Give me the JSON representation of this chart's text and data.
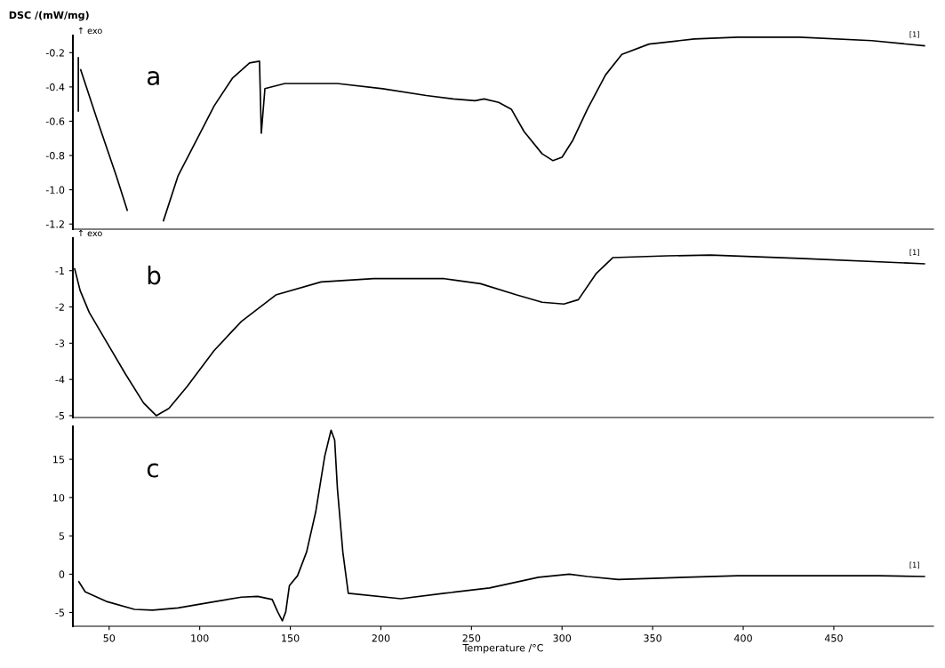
{
  "chart_data": [
    {
      "type": "line",
      "ylabel": "DSC /(mW/mg)",
      "annotations": [
        "a",
        "↑ exo",
        "[1]"
      ],
      "xlim": [
        30,
        505
      ],
      "ylim": [
        -1.23,
        -0.1
      ],
      "yticks": [
        -0.2,
        -0.4,
        -0.6,
        -0.8,
        {
          "value": -1,
          "label": "-1.0"
        },
        -1.2
      ],
      "tick_labels": "y",
      "grid": false,
      "legend": false,
      "series": [
        {
          "color": "#000000",
          "x": [
            33,
            33
          ],
          "values": [
            -0.23,
            -0.54
          ]
        },
        {
          "color": "#000000",
          "x": [
            34.3,
            44,
            54,
            60,
            63,
            77,
            80,
            88,
            108,
            118,
            127.5,
            133,
            134,
            136,
            147,
            176,
            201,
            225,
            240,
            252,
            257,
            265,
            272,
            279,
            289,
            295,
            300,
            306,
            314,
            324,
            333,
            348,
            373,
            397,
            431,
            471,
            500
          ],
          "values": [
            -0.3,
            -0.61,
            -0.92,
            -1.12,
            null,
            null,
            -1.18,
            -0.92,
            -0.51,
            -0.35,
            -0.26,
            -0.25,
            -0.67,
            -0.41,
            -0.38,
            -0.38,
            -0.41,
            -0.45,
            -0.47,
            -0.48,
            -0.47,
            -0.49,
            -0.53,
            -0.66,
            -0.79,
            -0.83,
            -0.81,
            -0.71,
            -0.53,
            -0.33,
            -0.21,
            -0.15,
            -0.12,
            -0.11,
            -0.11,
            -0.13,
            -0.16
          ]
        }
      ]
    },
    {
      "type": "line",
      "annotations": [
        "b",
        "↑ exo",
        "[1]"
      ],
      "xlim": [
        30,
        505
      ],
      "ylim": [
        -5.05,
        -0.1
      ],
      "yticks": [
        -1,
        -2,
        -3,
        -4,
        -5
      ],
      "tick_labels": "y",
      "grid": false,
      "legend": false,
      "series": [
        {
          "color": "#000000",
          "x": [
            31,
            34,
            39,
            49,
            59,
            69,
            76,
            83,
            93,
            108,
            123,
            142,
            167,
            196,
            235,
            255,
            275,
            289,
            301,
            309,
            319,
            328,
            358,
            382,
            431,
            500
          ],
          "values": [
            -0.95,
            -1.55,
            -2.15,
            -3.0,
            -3.85,
            -4.65,
            -5.0,
            -4.8,
            -4.2,
            -3.2,
            -2.4,
            -1.67,
            -1.31,
            -1.22,
            -1.22,
            -1.36,
            -1.67,
            -1.87,
            -1.92,
            -1.8,
            -1.07,
            -0.64,
            -0.59,
            -0.57,
            -0.66,
            -0.81
          ]
        }
      ]
    },
    {
      "type": "line",
      "xlabel": "Temperature /°C",
      "annotations": [
        "c",
        "[1]"
      ],
      "xlim": [
        30,
        505
      ],
      "xticks": [
        50,
        100,
        150,
        200,
        250,
        300,
        350,
        400,
        450
      ],
      "ylim": [
        -6.8,
        19.3
      ],
      "yticks": [
        15,
        10,
        5,
        0,
        -5
      ],
      "grid": false,
      "legend": false,
      "series": [
        {
          "color": "#000000",
          "x": [
            33.3,
            36.8,
            49,
            64,
            74,
            88,
            108,
            123,
            132,
            140,
            143,
            145.6,
            147.5,
            149.5,
            154,
            159,
            164,
            169,
            172.5,
            174.5,
            176,
            179,
            182,
            211,
            235,
            260,
            287,
            304,
            314,
            331,
            368,
            397,
            475,
            500
          ],
          "values": [
            -1.0,
            -2.3,
            -3.6,
            -4.6,
            -4.7,
            -4.4,
            -3.6,
            -3.0,
            -2.9,
            -3.3,
            -4.9,
            -6.1,
            -4.9,
            -1.5,
            -0.2,
            2.9,
            8.1,
            15.4,
            18.8,
            17.5,
            11.2,
            2.9,
            -2.5,
            -3.2,
            -2.5,
            -1.8,
            -0.4,
            0.0,
            -0.3,
            -0.7,
            -0.4,
            -0.2,
            -0.2,
            -0.3
          ]
        }
      ]
    }
  ]
}
